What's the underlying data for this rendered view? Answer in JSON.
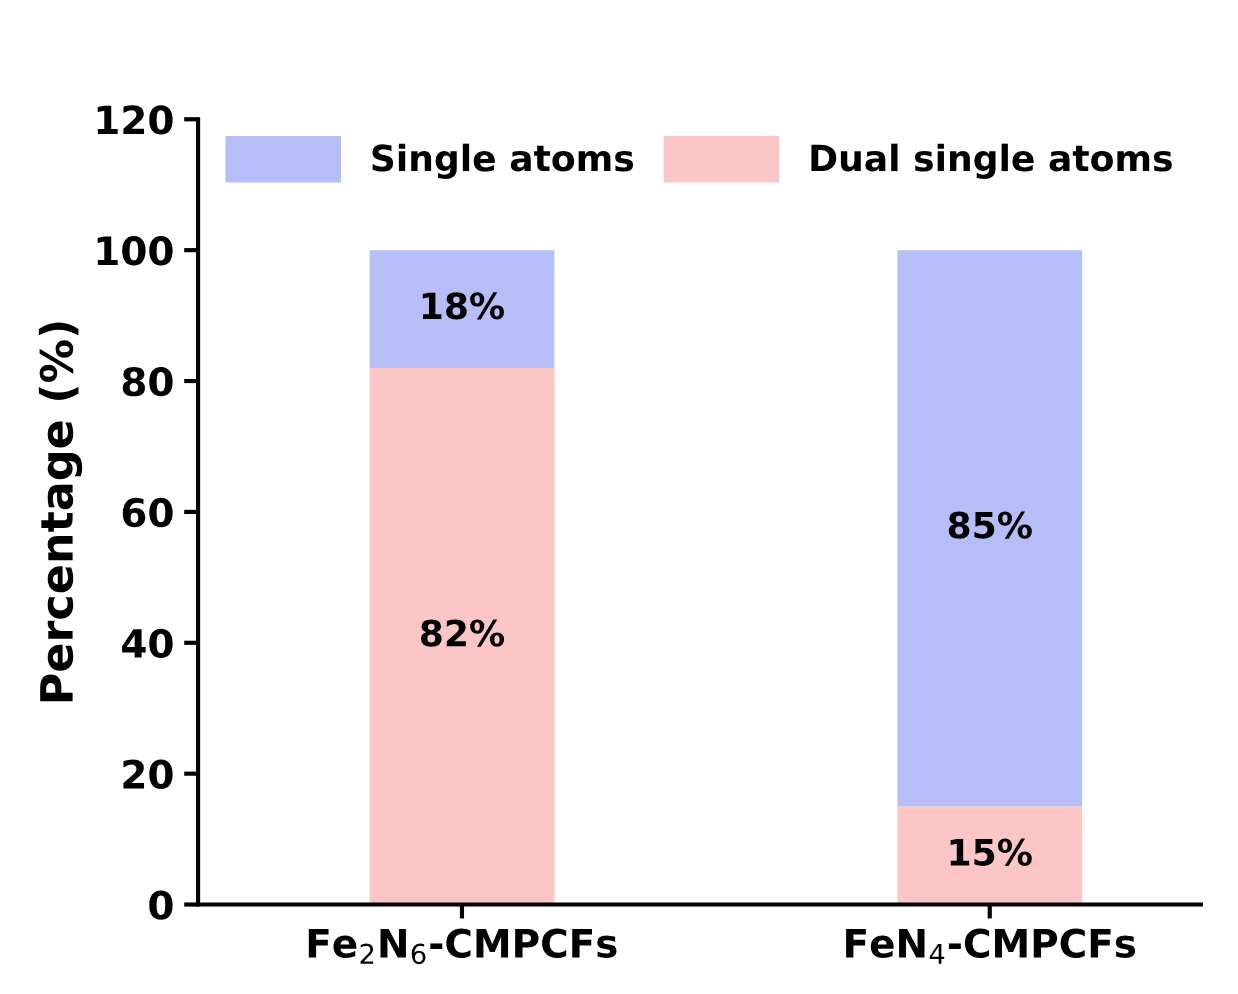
{
  "chart_data": {
    "type": "bar",
    "stacked": true,
    "ylabel": "Percentage (%)",
    "categories": [
      "Fe$_{2}$N$_{6}$-CMPCFs",
      "FeN$_{4}$-CMPCFs"
    ],
    "series": [
      {
        "name": "Dual single atoms",
        "color": "#fcc6c6",
        "values": [
          82,
          15
        ],
        "value_labels": [
          "82%",
          "15%"
        ]
      },
      {
        "name": "Single atoms",
        "color": "#b7bdf7",
        "values": [
          18,
          85
        ],
        "value_labels": [
          "18%",
          "85%"
        ]
      }
    ],
    "ylim": [
      0,
      120
    ],
    "yticks": [
      0,
      20,
      40,
      60,
      80,
      100,
      120
    ],
    "grid": false,
    "legend": "top"
  }
}
